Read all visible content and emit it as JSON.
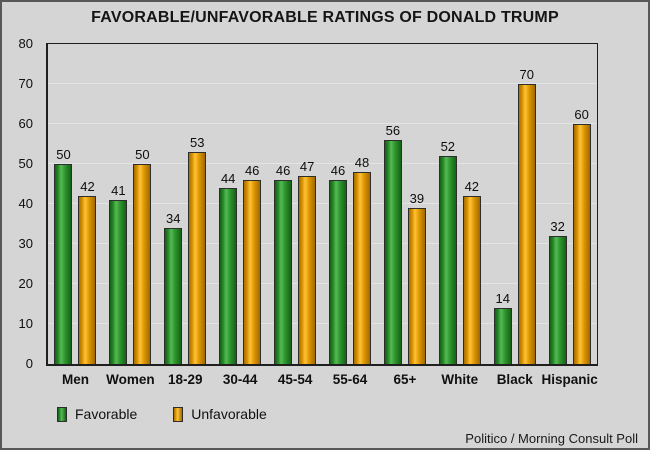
{
  "chart_data": {
    "type": "bar",
    "title": "FAVORABLE/UNFAVORABLE RATINGS OF DONALD TRUMP",
    "categories": [
      "Men",
      "Women",
      "18-29",
      "30-44",
      "45-54",
      "55-64",
      "65+",
      "White",
      "Black",
      "Hispanic"
    ],
    "series": [
      {
        "name": "Favorable",
        "color": "#2E9B2E",
        "values": [
          50,
          41,
          34,
          44,
          46,
          46,
          56,
          52,
          14,
          32
        ]
      },
      {
        "name": "Unfavorable",
        "color": "#F0A202",
        "values": [
          42,
          50,
          53,
          46,
          47,
          48,
          39,
          42,
          70,
          60
        ]
      }
    ],
    "xlabel": "",
    "ylabel": "",
    "ylim": [
      0,
      80
    ],
    "ytick_step": 10,
    "grid": true,
    "legend_position": "bottom-left"
  },
  "footer": {
    "attribution": "Politico / Morning Consult Poll"
  }
}
